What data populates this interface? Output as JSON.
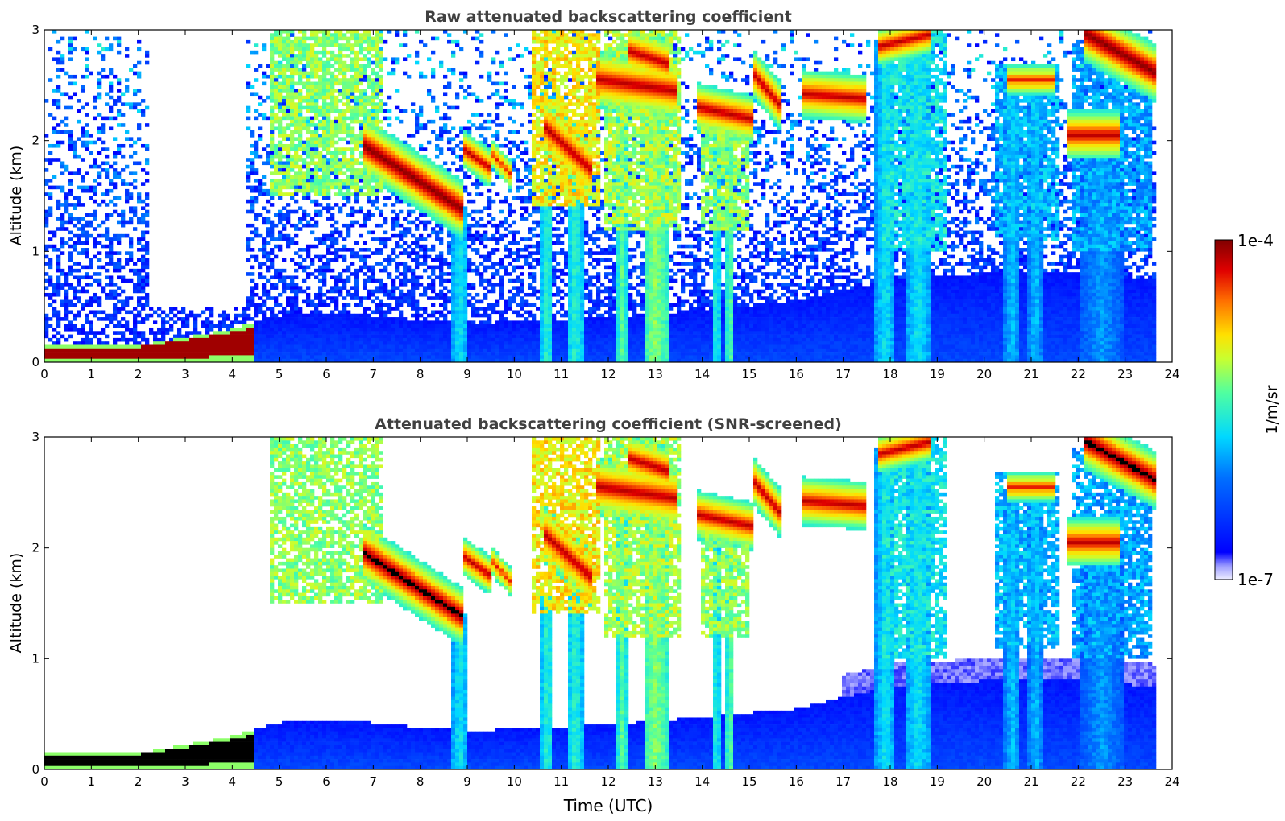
{
  "chart_data": [
    {
      "type": "heatmap",
      "title": "Raw attenuated backscattering coefficient",
      "xlabel": "",
      "ylabel": "Altitude (km)",
      "xlim": [
        0,
        24
      ],
      "ylim": [
        0,
        3
      ],
      "x_ticks": [
        "0",
        "1",
        "2",
        "3",
        "4",
        "5",
        "6",
        "7",
        "8",
        "9",
        "10",
        "11",
        "12",
        "13",
        "14",
        "15",
        "16",
        "17",
        "18",
        "19",
        "20",
        "21",
        "22",
        "23",
        "24"
      ],
      "y_ticks": [
        "0",
        "1",
        "2",
        "3"
      ],
      "screened": false
    },
    {
      "type": "heatmap",
      "title": "Attenuated backscattering coefficient (SNR-screened)",
      "xlabel": "Time (UTC)",
      "ylabel": "Altitude (km)",
      "xlim": [
        0,
        24
      ],
      "ylim": [
        0,
        3
      ],
      "x_ticks": [
        "0",
        "1",
        "2",
        "3",
        "4",
        "5",
        "6",
        "7",
        "8",
        "9",
        "10",
        "11",
        "12",
        "13",
        "14",
        "15",
        "16",
        "17",
        "18",
        "19",
        "20",
        "21",
        "22",
        "23",
        "24"
      ],
      "y_ticks": [
        "0",
        "1",
        "2",
        "3"
      ],
      "screened": true
    }
  ],
  "colorbar": {
    "label": "1/m/sr",
    "max_label": "1e-4",
    "min_label": "1e-7",
    "scale": "log",
    "colormap": "jet",
    "range": [
      1e-07,
      0.0001
    ]
  },
  "data_extent_hours": 23.7,
  "layers": {
    "surface_layer": [
      [
        0,
        0.15
      ],
      [
        2,
        0.15
      ],
      [
        3,
        0.22
      ],
      [
        4,
        0.3
      ],
      [
        5,
        0.42
      ],
      [
        6,
        0.45
      ],
      [
        7,
        0.42
      ],
      [
        8,
        0.38
      ],
      [
        9,
        0.35
      ],
      [
        12,
        0.4
      ],
      [
        16,
        0.55
      ],
      [
        18,
        0.75
      ],
      [
        20,
        0.8
      ],
      [
        22,
        0.8
      ],
      [
        23.7,
        0.75
      ]
    ],
    "cloud_bands": [
      {
        "x0": 6.8,
        "x1": 8.9,
        "y0": 1.95,
        "y1": 1.38,
        "w": 0.12,
        "level": 1.0
      },
      {
        "x0": 9.0,
        "x1": 9.5,
        "y0": 1.9,
        "y1": 1.75,
        "w": 0.08,
        "level": 0.95
      },
      {
        "x0": 9.6,
        "x1": 9.9,
        "y0": 1.85,
        "y1": 1.7,
        "w": 0.06,
        "level": 0.9
      },
      {
        "x0": 10.7,
        "x1": 11.6,
        "y0": 2.1,
        "y1": 1.75,
        "w": 0.12,
        "level": 0.95
      },
      {
        "x0": 11.8,
        "x1": 13.4,
        "y0": 2.55,
        "y1": 2.45,
        "w": 0.12,
        "level": 0.95
      },
      {
        "x0": 12.5,
        "x1": 13.2,
        "y0": 2.8,
        "y1": 2.7,
        "w": 0.1,
        "level": 0.95
      },
      {
        "x0": 13.9,
        "x1": 15.0,
        "y0": 2.3,
        "y1": 2.2,
        "w": 0.1,
        "level": 0.95
      },
      {
        "x0": 15.1,
        "x1": 15.6,
        "y0": 2.6,
        "y1": 2.35,
        "w": 0.1,
        "level": 0.95
      },
      {
        "x0": 16.2,
        "x1": 17.4,
        "y0": 2.42,
        "y1": 2.38,
        "w": 0.1,
        "level": 0.95
      },
      {
        "x0": 17.8,
        "x1": 18.8,
        "y0": 2.85,
        "y1": 2.95,
        "w": 0.08,
        "level": 0.95
      },
      {
        "x0": 20.5,
        "x1": 21.5,
        "y0": 2.55,
        "y1": 2.55,
        "w": 0.06,
        "level": 0.9
      },
      {
        "x0": 21.8,
        "x1": 22.8,
        "y0": 2.05,
        "y1": 2.05,
        "w": 0.1,
        "level": 0.95
      },
      {
        "x0": 22.2,
        "x1": 23.7,
        "y0": 2.95,
        "y1": 2.6,
        "w": 0.12,
        "level": 1.0
      }
    ],
    "virga_columns": [
      {
        "x": 8.85,
        "w": 0.35,
        "top": 1.4,
        "level": 0.45
      },
      {
        "x": 10.7,
        "w": 0.25,
        "top": 1.6,
        "level": 0.5
      },
      {
        "x": 11.3,
        "w": 0.3,
        "top": 1.7,
        "level": 0.5
      },
      {
        "x": 12.3,
        "w": 0.2,
        "top": 2.4,
        "level": 0.55
      },
      {
        "x": 13.0,
        "w": 0.5,
        "top": 2.5,
        "level": 0.6
      },
      {
        "x": 14.3,
        "w": 0.15,
        "top": 2.2,
        "level": 0.5
      },
      {
        "x": 14.6,
        "w": 0.2,
        "top": 2.2,
        "level": 0.55
      },
      {
        "x": 17.9,
        "w": 0.4,
        "top": 2.9,
        "level": 0.45
      },
      {
        "x": 18.6,
        "w": 0.5,
        "top": 2.8,
        "level": 0.45
      },
      {
        "x": 20.6,
        "w": 0.35,
        "top": 2.5,
        "level": 0.4
      },
      {
        "x": 21.1,
        "w": 0.3,
        "top": 2.5,
        "level": 0.4
      },
      {
        "x": 22.5,
        "w": 0.9,
        "top": 2.0,
        "level": 0.35
      }
    ],
    "diffuse_patches": [
      {
        "x0": 4.8,
        "x1": 7.2,
        "y0": 1.5,
        "y1": 3.0,
        "level": 0.6
      },
      {
        "x0": 10.4,
        "x1": 11.8,
        "y0": 1.4,
        "y1": 3.0,
        "level": 0.7
      },
      {
        "x0": 11.9,
        "x1": 13.5,
        "y0": 1.2,
        "y1": 3.0,
        "level": 0.62
      },
      {
        "x0": 14.0,
        "x1": 15.0,
        "y0": 1.2,
        "y1": 2.3,
        "level": 0.6
      },
      {
        "x0": 17.8,
        "x1": 19.2,
        "y0": 1.0,
        "y1": 3.0,
        "level": 0.45
      },
      {
        "x0": 20.2,
        "x1": 21.6,
        "y0": 1.1,
        "y1": 2.7,
        "level": 0.38
      },
      {
        "x0": 21.9,
        "x1": 23.6,
        "y0": 1.0,
        "y1": 2.9,
        "level": 0.36
      }
    ]
  }
}
